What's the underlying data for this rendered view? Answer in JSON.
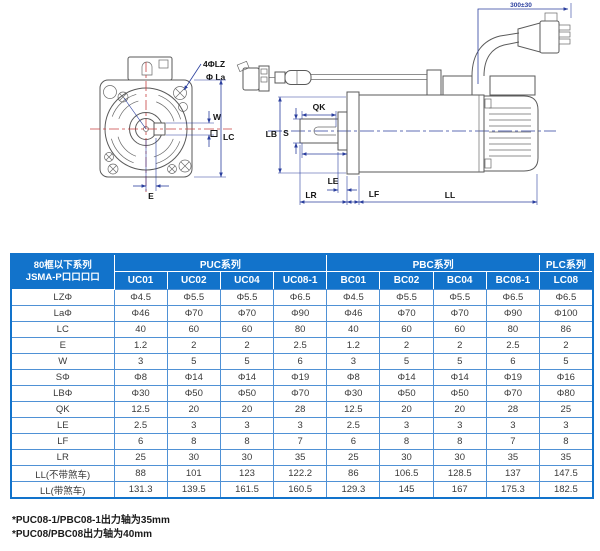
{
  "diagram": {
    "front_view": {
      "labels": {
        "holes": "4ΦLZ",
        "boss_dia": "Φ La",
        "w": "W",
        "lc": "LC",
        "e": "E"
      }
    },
    "side_view": {
      "labels": {
        "qk": "QK",
        "lb": "LB",
        "s": "S",
        "le": "LE",
        "lr": "LR",
        "lf": "LF",
        "ll": "LL",
        "cable_length": "300±30"
      }
    }
  },
  "table": {
    "header": {
      "series_label_line1": "80框以下系列",
      "series_label_line2": "JSMA-P口口口口",
      "groups": [
        {
          "label": "PUC系列",
          "span": 4
        },
        {
          "label": "PBC系列",
          "span": 4
        },
        {
          "label": "PLC系列",
          "span": 1
        }
      ],
      "models": [
        "UC01",
        "UC02",
        "UC04",
        "UC08-1",
        "BC01",
        "BC02",
        "BC04",
        "BC08-1",
        "LC08"
      ]
    },
    "rows": [
      {
        "label": "LZΦ",
        "values": [
          "Φ4.5",
          "Φ5.5",
          "Φ5.5",
          "Φ6.5",
          "Φ4.5",
          "Φ5.5",
          "Φ5.5",
          "Φ6.5",
          "Φ6.5"
        ]
      },
      {
        "label": "LaΦ",
        "values": [
          "Φ46",
          "Φ70",
          "Φ70",
          "Φ90",
          "Φ46",
          "Φ70",
          "Φ70",
          "Φ90",
          "Φ100"
        ]
      },
      {
        "label": "LC",
        "values": [
          "40",
          "60",
          "60",
          "80",
          "40",
          "60",
          "60",
          "80",
          "86"
        ]
      },
      {
        "label": "E",
        "values": [
          "1.2",
          "2",
          "2",
          "2.5",
          "1.2",
          "2",
          "2",
          "2.5",
          "2"
        ]
      },
      {
        "label": "W",
        "values": [
          "3",
          "5",
          "5",
          "6",
          "3",
          "5",
          "5",
          "6",
          "5"
        ]
      },
      {
        "label": "SΦ",
        "values": [
          "Φ8",
          "Φ14",
          "Φ14",
          "Φ19",
          "Φ8",
          "Φ14",
          "Φ14",
          "Φ19",
          "Φ16"
        ]
      },
      {
        "label": "LBΦ",
        "values": [
          "Φ30",
          "Φ50",
          "Φ50",
          "Φ70",
          "Φ30",
          "Φ50",
          "Φ50",
          "Φ70",
          "Φ80"
        ]
      },
      {
        "label": "QK",
        "values": [
          "12.5",
          "20",
          "20",
          "28",
          "12.5",
          "20",
          "20",
          "28",
          "25"
        ]
      },
      {
        "label": "LE",
        "values": [
          "2.5",
          "3",
          "3",
          "3",
          "2.5",
          "3",
          "3",
          "3",
          "3"
        ]
      },
      {
        "label": "LF",
        "values": [
          "6",
          "8",
          "8",
          "7",
          "6",
          "8",
          "8",
          "7",
          "8"
        ]
      },
      {
        "label": "LR",
        "values": [
          "25",
          "30",
          "30",
          "35",
          "25",
          "30",
          "30",
          "35",
          "35"
        ]
      },
      {
        "label": "LL(不带煞车)",
        "values": [
          "88",
          "101",
          "123",
          "122.2",
          "86",
          "106.5",
          "128.5",
          "137",
          "147.5"
        ]
      },
      {
        "label": "LL(带煞车)",
        "values": [
          "131.3",
          "139.5",
          "161.5",
          "160.5",
          "129.3",
          "145",
          "167",
          "175.3",
          "182.5"
        ]
      }
    ],
    "footnotes": [
      "*PUC08-1/PBC08-1出力轴为35mm",
      "*PUC08/PBC08出力轴为40mm"
    ]
  },
  "colors": {
    "header_bg": "#1273cb",
    "grid_border": "#4f91d5",
    "dim_line": "#2b3f9e",
    "centerline_red": "#c64040",
    "outline": "#5a5a5a"
  }
}
